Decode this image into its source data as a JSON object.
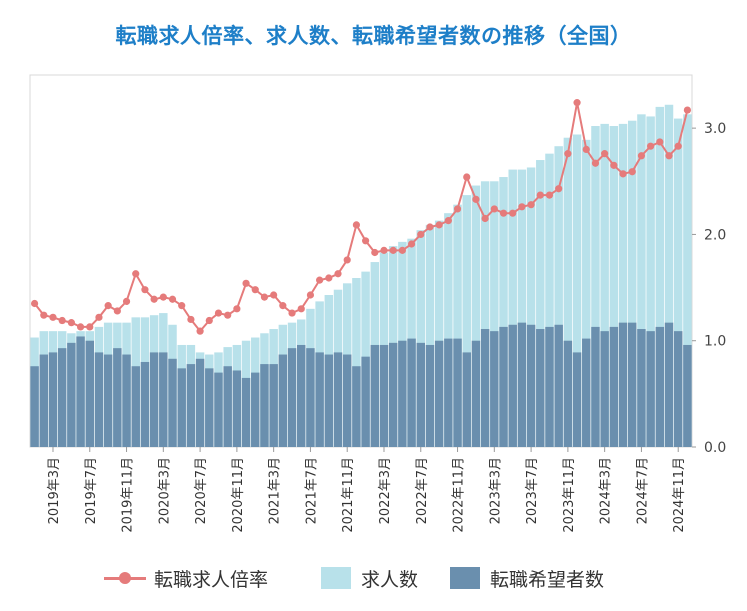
{
  "title": "転職求人倍率、求人数、転職希望者数の推移（全国）",
  "colors": {
    "title": "#1e7fc8",
    "ratio": "#e57b7b",
    "jobs": "#b8e1ea",
    "seekers": "#6a8fae"
  },
  "legend": {
    "ratio": "転職求人倍率",
    "jobs": "求人数",
    "seekers": "転職希望者数"
  },
  "chart_data": {
    "type": "bar",
    "title": "転職求人倍率、求人数、転職希望者数の推移（全国）",
    "x": [
      "2019年1月",
      "2019年2月",
      "2019年3月",
      "2019年4月",
      "2019年5月",
      "2019年6月",
      "2019年7月",
      "2019年8月",
      "2019年9月",
      "2019年10月",
      "2019年11月",
      "2019年12月",
      "2020年1月",
      "2020年2月",
      "2020年3月",
      "2020年4月",
      "2020年5月",
      "2020年6月",
      "2020年7月",
      "2020年8月",
      "2020年9月",
      "2020年10月",
      "2020年11月",
      "2020年12月",
      "2021年1月",
      "2021年2月",
      "2021年3月",
      "2021年4月",
      "2021年5月",
      "2021年6月",
      "2021年7月",
      "2021年8月",
      "2021年9月",
      "2021年10月",
      "2021年11月",
      "2021年12月",
      "2022年1月",
      "2022年2月",
      "2022年3月",
      "2022年4月",
      "2022年5月",
      "2022年6月",
      "2022年7月",
      "2022年8月",
      "2022年9月",
      "2022年10月",
      "2022年11月",
      "2022年12月",
      "2023年1月",
      "2023年2月",
      "2023年3月",
      "2023年4月",
      "2023年5月",
      "2023年6月",
      "2023年7月",
      "2023年8月",
      "2023年9月",
      "2023年10月",
      "2023年11月",
      "2023年12月",
      "2024年1月",
      "2024年2月",
      "2024年3月",
      "2024年4月",
      "2024年5月",
      "2024年6月",
      "2024年7月",
      "2024年8月",
      "2024年9月",
      "2024年10月",
      "2024年11月",
      "2024年12月"
    ],
    "x_tick_labels": [
      "2019年3月",
      "2019年7月",
      "2019年11月",
      "2020年3月",
      "2020年7月",
      "2020年11月",
      "2021年3月",
      "2021年7月",
      "2021年11月",
      "2022年3月",
      "2022年7月",
      "2022年11月",
      "2023年3月",
      "2023年7月",
      "2023年11月",
      "2024年3月",
      "2024年7月",
      "2024年11月"
    ],
    "x_tick_indices": [
      2,
      6,
      10,
      14,
      18,
      22,
      26,
      30,
      34,
      38,
      42,
      46,
      50,
      54,
      58,
      62,
      66,
      70
    ],
    "series": [
      {
        "name": "求人数",
        "type": "bar",
        "values": [
          1.03,
          1.09,
          1.09,
          1.09,
          1.07,
          1.09,
          1.09,
          1.13,
          1.17,
          1.17,
          1.17,
          1.22,
          1.22,
          1.24,
          1.26,
          1.15,
          0.96,
          0.96,
          0.89,
          0.87,
          0.89,
          0.94,
          0.96,
          1.0,
          1.03,
          1.07,
          1.11,
          1.15,
          1.17,
          1.2,
          1.3,
          1.37,
          1.43,
          1.48,
          1.54,
          1.59,
          1.65,
          1.74,
          1.83,
          1.89,
          1.93,
          1.96,
          2.04,
          2.09,
          2.13,
          2.2,
          2.28,
          2.37,
          2.46,
          2.5,
          2.5,
          2.54,
          2.61,
          2.61,
          2.63,
          2.7,
          2.76,
          2.83,
          2.91,
          2.94,
          2.89,
          3.02,
          3.04,
          3.02,
          3.04,
          3.07,
          3.13,
          3.11,
          3.2,
          3.22,
          3.09,
          3.13
        ]
      },
      {
        "name": "転職希望者数",
        "type": "bar",
        "values": [
          0.76,
          0.87,
          0.89,
          0.93,
          0.98,
          1.04,
          1.0,
          0.89,
          0.87,
          0.93,
          0.87,
          0.76,
          0.8,
          0.89,
          0.89,
          0.83,
          0.74,
          0.78,
          0.83,
          0.74,
          0.7,
          0.76,
          0.72,
          0.65,
          0.7,
          0.78,
          0.78,
          0.87,
          0.93,
          0.96,
          0.93,
          0.89,
          0.87,
          0.89,
          0.87,
          0.76,
          0.85,
          0.96,
          0.96,
          0.98,
          1.0,
          1.02,
          0.98,
          0.96,
          1.0,
          1.02,
          1.02,
          0.89,
          1.0,
          1.11,
          1.09,
          1.13,
          1.15,
          1.17,
          1.15,
          1.11,
          1.13,
          1.15,
          1.0,
          0.89,
          1.02,
          1.13,
          1.09,
          1.13,
          1.17,
          1.17,
          1.11,
          1.09,
          1.13,
          1.17,
          1.09,
          0.96
        ]
      },
      {
        "name": "転職求人倍率",
        "type": "line",
        "values": [
          1.35,
          1.24,
          1.22,
          1.19,
          1.17,
          1.13,
          1.13,
          1.22,
          1.33,
          1.28,
          1.37,
          1.63,
          1.48,
          1.39,
          1.41,
          1.39,
          1.33,
          1.2,
          1.09,
          1.19,
          1.26,
          1.24,
          1.3,
          1.54,
          1.48,
          1.41,
          1.43,
          1.33,
          1.26,
          1.3,
          1.43,
          1.57,
          1.59,
          1.63,
          1.76,
          2.09,
          1.94,
          1.83,
          1.85,
          1.85,
          1.85,
          1.91,
          2.0,
          2.07,
          2.09,
          2.13,
          2.24,
          2.54,
          2.33,
          2.15,
          2.24,
          2.2,
          2.2,
          2.26,
          2.28,
          2.37,
          2.37,
          2.43,
          2.76,
          3.24,
          2.8,
          2.67,
          2.76,
          2.65,
          2.57,
          2.59,
          2.74,
          2.83,
          2.87,
          2.74,
          2.83,
          3.17
        ]
      }
    ],
    "yticks": [
      "0.0",
      "1.0",
      "2.0",
      "3.0"
    ],
    "ylim": [
      0,
      3.5
    ],
    "grid": false,
    "legend_position": "bottom"
  }
}
